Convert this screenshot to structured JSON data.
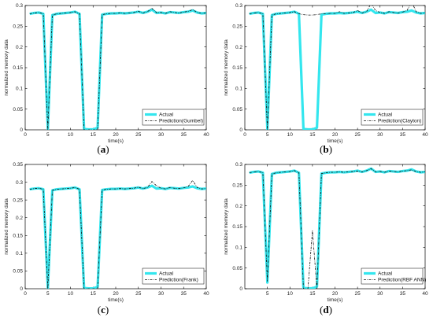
{
  "chart_data": [
    {
      "type": "line",
      "panel_label": "(a)",
      "xlabel": "time(s)",
      "ylabel": "normalized memory data",
      "xlim": [
        0,
        40
      ],
      "ylim": [
        0,
        0.3
      ],
      "xticks": [
        0,
        5,
        10,
        15,
        20,
        25,
        30,
        35,
        40
      ],
      "yticks": [
        0,
        0.05,
        0.1,
        0.15,
        0.2,
        0.25,
        0.3
      ],
      "legend_position": "lower-right",
      "series": [
        {
          "name": "Actual",
          "color": "#33e6ee",
          "style": "solid-thick",
          "x": [
            1,
            2,
            3,
            4,
            5,
            6,
            7,
            8,
            9,
            10,
            11,
            12,
            13,
            14,
            15,
            16,
            17,
            18,
            19,
            20,
            21,
            22,
            23,
            24,
            25,
            26,
            27,
            28,
            29,
            30,
            31,
            32,
            33,
            34,
            35,
            36,
            37,
            38,
            39,
            40
          ],
          "y": [
            0.28,
            0.282,
            0.283,
            0.28,
            0.002,
            0.277,
            0.28,
            0.281,
            0.282,
            0.283,
            0.285,
            0.28,
            0.002,
            0.001,
            0.001,
            0.005,
            0.278,
            0.28,
            0.281,
            0.281,
            0.282,
            0.281,
            0.282,
            0.283,
            0.285,
            0.282,
            0.285,
            0.29,
            0.282,
            0.283,
            0.281,
            0.284,
            0.283,
            0.282,
            0.284,
            0.285,
            0.288,
            0.283,
            0.281,
            0.282
          ]
        },
        {
          "name": "Prediction(Gumbel)",
          "color": "#111111",
          "style": "dashdot",
          "x": [
            1,
            2,
            3,
            4,
            5,
            6,
            7,
            8,
            9,
            10,
            11,
            12,
            13,
            14,
            15,
            16,
            17,
            18,
            19,
            20,
            21,
            22,
            23,
            24,
            25,
            26,
            27,
            28,
            29,
            30,
            31,
            32,
            33,
            34,
            35,
            36,
            37,
            38,
            39,
            40
          ],
          "y": [
            0.28,
            0.282,
            0.283,
            0.28,
            0.0,
            0.277,
            0.28,
            0.281,
            0.282,
            0.283,
            0.285,
            0.28,
            0.0,
            0.0,
            0.0,
            0.0,
            0.278,
            0.28,
            0.281,
            0.281,
            0.282,
            0.281,
            0.282,
            0.283,
            0.286,
            0.282,
            0.285,
            0.293,
            0.283,
            0.283,
            0.281,
            0.285,
            0.283,
            0.282,
            0.284,
            0.286,
            0.29,
            0.283,
            0.281,
            0.282
          ]
        }
      ]
    },
    {
      "type": "line",
      "panel_label": "(b)",
      "xlabel": "time(s)",
      "ylabel": "normalized memory data",
      "xlim": [
        0,
        40
      ],
      "ylim": [
        0,
        0.3
      ],
      "xticks": [
        0,
        5,
        10,
        15,
        20,
        25,
        30,
        35,
        40
      ],
      "yticks": [
        0,
        0.05,
        0.1,
        0.15,
        0.2,
        0.25,
        0.3
      ],
      "legend_position": "lower-right",
      "series": [
        {
          "name": "Actual",
          "color": "#33e6ee",
          "style": "solid-thick",
          "x": [
            1,
            2,
            3,
            4,
            5,
            6,
            7,
            8,
            9,
            10,
            11,
            12,
            13,
            14,
            15,
            16,
            17,
            18,
            19,
            20,
            21,
            22,
            23,
            24,
            25,
            26,
            27,
            28,
            29,
            30,
            31,
            32,
            33,
            34,
            35,
            36,
            37,
            38,
            39,
            40
          ],
          "y": [
            0.28,
            0.282,
            0.283,
            0.28,
            0.002,
            0.277,
            0.28,
            0.281,
            0.282,
            0.283,
            0.285,
            0.28,
            0.002,
            0.001,
            0.001,
            0.005,
            0.278,
            0.28,
            0.281,
            0.281,
            0.282,
            0.281,
            0.282,
            0.283,
            0.285,
            0.282,
            0.285,
            0.29,
            0.282,
            0.283,
            0.281,
            0.284,
            0.283,
            0.282,
            0.284,
            0.285,
            0.288,
            0.283,
            0.281,
            0.282
          ]
        },
        {
          "name": "Prediction(Clayton)",
          "color": "#111111",
          "style": "dashdot",
          "x": [
            1,
            2,
            3,
            4,
            5,
            6,
            7,
            8,
            9,
            10,
            11,
            12,
            13,
            14,
            15,
            16,
            17,
            18,
            19,
            20,
            21,
            22,
            23,
            24,
            25,
            26,
            27,
            28,
            29,
            30,
            31,
            32,
            33,
            34,
            35,
            36,
            37,
            38,
            39,
            40
          ],
          "y": [
            0.28,
            0.282,
            0.283,
            0.28,
            0.0,
            0.277,
            0.28,
            0.281,
            0.282,
            0.283,
            0.285,
            0.28,
            0.278,
            0.277,
            0.277,
            0.278,
            0.28,
            0.28,
            0.281,
            0.281,
            0.285,
            0.281,
            0.282,
            0.283,
            0.288,
            0.282,
            0.285,
            0.305,
            0.288,
            0.283,
            0.281,
            0.285,
            0.283,
            0.282,
            0.284,
            0.288,
            0.31,
            0.285,
            0.281,
            0.282
          ]
        }
      ]
    },
    {
      "type": "line",
      "panel_label": "(c)",
      "xlabel": "time(s)",
      "ylabel": "normalized memory data",
      "xlim": [
        0,
        40
      ],
      "ylim": [
        0,
        0.35
      ],
      "xticks": [
        0,
        5,
        10,
        15,
        20,
        25,
        30,
        35,
        40
      ],
      "yticks": [
        0,
        0.05,
        0.1,
        0.15,
        0.2,
        0.25,
        0.3,
        0.35
      ],
      "legend_position": "lower-right",
      "series": [
        {
          "name": "Actual",
          "color": "#33e6ee",
          "style": "solid-thick",
          "x": [
            1,
            2,
            3,
            4,
            5,
            6,
            7,
            8,
            9,
            10,
            11,
            12,
            13,
            14,
            15,
            16,
            17,
            18,
            19,
            20,
            21,
            22,
            23,
            24,
            25,
            26,
            27,
            28,
            29,
            30,
            31,
            32,
            33,
            34,
            35,
            36,
            37,
            38,
            39,
            40
          ],
          "y": [
            0.28,
            0.282,
            0.283,
            0.28,
            0.002,
            0.277,
            0.28,
            0.281,
            0.282,
            0.283,
            0.285,
            0.28,
            0.002,
            0.001,
            0.001,
            0.005,
            0.278,
            0.28,
            0.281,
            0.281,
            0.282,
            0.281,
            0.282,
            0.283,
            0.285,
            0.282,
            0.285,
            0.29,
            0.282,
            0.283,
            0.281,
            0.284,
            0.283,
            0.282,
            0.284,
            0.285,
            0.288,
            0.283,
            0.281,
            0.282
          ]
        },
        {
          "name": "Prediction(Frank)",
          "color": "#111111",
          "style": "dashdot",
          "x": [
            1,
            2,
            3,
            4,
            5,
            6,
            7,
            8,
            9,
            10,
            11,
            12,
            13,
            14,
            15,
            16,
            17,
            18,
            19,
            20,
            21,
            22,
            23,
            24,
            25,
            26,
            27,
            28,
            29,
            30,
            31,
            32,
            33,
            34,
            35,
            36,
            37,
            38,
            39,
            40
          ],
          "y": [
            0.28,
            0.282,
            0.283,
            0.28,
            0.0,
            0.277,
            0.28,
            0.281,
            0.282,
            0.283,
            0.285,
            0.28,
            0.0,
            0.0,
            0.0,
            0.0,
            0.278,
            0.28,
            0.281,
            0.281,
            0.282,
            0.281,
            0.282,
            0.283,
            0.286,
            0.282,
            0.285,
            0.302,
            0.29,
            0.283,
            0.281,
            0.285,
            0.283,
            0.282,
            0.284,
            0.288,
            0.305,
            0.285,
            0.281,
            0.282
          ]
        }
      ]
    },
    {
      "type": "line",
      "panel_label": "(d)",
      "xlabel": "time(s)",
      "ylabel": "normalized memory data",
      "xlim": [
        0,
        40
      ],
      "ylim": [
        0,
        0.3
      ],
      "xticks": [
        5,
        10,
        15,
        20,
        25,
        30,
        35,
        40
      ],
      "yticks": [
        0,
        0.05,
        0.1,
        0.15,
        0.2,
        0.25,
        0.3
      ],
      "legend_position": "lower-right",
      "series": [
        {
          "name": "Actual",
          "color": "#33e6ee",
          "style": "solid-thick",
          "x": [
            1,
            2,
            3,
            4,
            5,
            6,
            7,
            8,
            9,
            10,
            11,
            12,
            13,
            14,
            15,
            16,
            17,
            18,
            19,
            20,
            21,
            22,
            23,
            24,
            25,
            26,
            27,
            28,
            29,
            30,
            31,
            32,
            33,
            34,
            35,
            36,
            37,
            38,
            39,
            40
          ],
          "y": [
            0.28,
            0.282,
            0.283,
            0.28,
            0.015,
            0.277,
            0.28,
            0.281,
            0.282,
            0.283,
            0.285,
            0.28,
            0.002,
            0.001,
            0.001,
            0.005,
            0.278,
            0.28,
            0.281,
            0.281,
            0.282,
            0.281,
            0.282,
            0.283,
            0.285,
            0.282,
            0.285,
            0.29,
            0.282,
            0.283,
            0.281,
            0.284,
            0.283,
            0.282,
            0.284,
            0.285,
            0.288,
            0.283,
            0.281,
            0.282
          ]
        },
        {
          "name": "Prediction(RBF ANN)",
          "color": "#111111",
          "style": "dashdot",
          "x": [
            1,
            2,
            3,
            4,
            5,
            6,
            7,
            8,
            9,
            10,
            11,
            12,
            13,
            14,
            15,
            16,
            17,
            18,
            19,
            20,
            21,
            22,
            23,
            24,
            25,
            26,
            27,
            28,
            29,
            30,
            31,
            32,
            33,
            34,
            35,
            36,
            37,
            38,
            39,
            40
          ],
          "y": [
            0.28,
            0.282,
            0.283,
            0.28,
            0.018,
            0.277,
            0.28,
            0.281,
            0.282,
            0.283,
            0.285,
            0.28,
            0.0,
            0.0,
            0.14,
            0.0,
            0.278,
            0.28,
            0.281,
            0.281,
            0.282,
            0.281,
            0.282,
            0.283,
            0.284,
            0.282,
            0.285,
            0.29,
            0.282,
            0.283,
            0.281,
            0.284,
            0.283,
            0.282,
            0.284,
            0.285,
            0.287,
            0.283,
            0.281,
            0.282
          ]
        }
      ]
    }
  ]
}
